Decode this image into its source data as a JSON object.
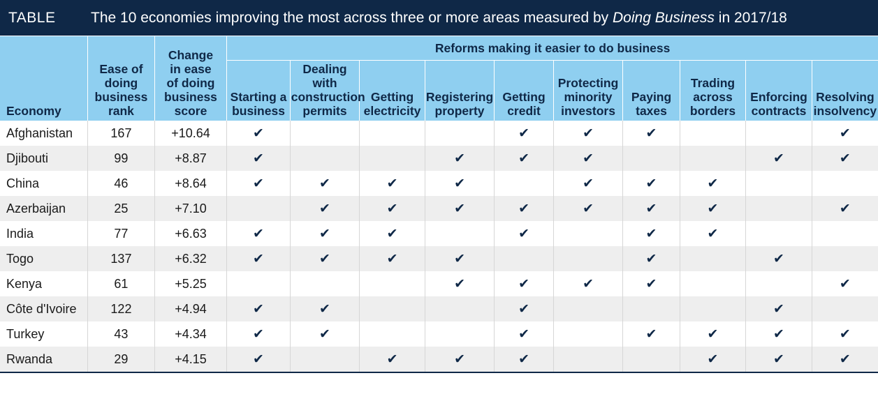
{
  "title": {
    "tag": "TABLE",
    "text_before": "The 10 economies improving the most across three or more areas measured by ",
    "text_italic": "Doing Business",
    "text_after": " in 2017/18"
  },
  "headers": {
    "economy": "Economy",
    "rank": [
      "Ease of",
      "doing",
      "business",
      "rank"
    ],
    "change": [
      "Change",
      "in ease",
      "of doing",
      "business",
      "score"
    ],
    "group": "Reforms making it easier to do business",
    "reforms": [
      [
        "Starting a",
        "business"
      ],
      [
        "Dealing",
        "with",
        "construction",
        "permits"
      ],
      [
        "Getting",
        "electricity"
      ],
      [
        "Registering",
        "property"
      ],
      [
        "Getting",
        "credit"
      ],
      [
        "Protecting",
        "minority",
        "investors"
      ],
      [
        "Paying",
        "taxes"
      ],
      [
        "Trading",
        "across",
        "borders"
      ],
      [
        "Enforcing",
        "contracts"
      ],
      [
        "Resolving",
        "insolvency"
      ]
    ]
  },
  "check_symbol": "✔",
  "rows": [
    {
      "economy": "Afghanistan",
      "rank": "167",
      "change": "+10.64",
      "reforms": [
        1,
        0,
        0,
        0,
        1,
        1,
        1,
        0,
        0,
        1
      ]
    },
    {
      "economy": "Djibouti",
      "rank": "99",
      "change": "+8.87",
      "reforms": [
        1,
        0,
        0,
        1,
        1,
        1,
        0,
        0,
        1,
        1
      ]
    },
    {
      "economy": "China",
      "rank": "46",
      "change": "+8.64",
      "reforms": [
        1,
        1,
        1,
        1,
        0,
        1,
        1,
        1,
        0,
        0
      ]
    },
    {
      "economy": "Azerbaijan",
      "rank": "25",
      "change": "+7.10",
      "reforms": [
        0,
        1,
        1,
        1,
        1,
        1,
        1,
        1,
        0,
        1
      ]
    },
    {
      "economy": "India",
      "rank": "77",
      "change": "+6.63",
      "reforms": [
        1,
        1,
        1,
        0,
        1,
        0,
        1,
        1,
        0,
        0
      ]
    },
    {
      "economy": "Togo",
      "rank": "137",
      "change": "+6.32",
      "reforms": [
        1,
        1,
        1,
        1,
        0,
        0,
        1,
        0,
        1,
        0
      ]
    },
    {
      "economy": "Kenya",
      "rank": "61",
      "change": "+5.25",
      "reforms": [
        0,
        0,
        0,
        1,
        1,
        1,
        1,
        0,
        0,
        1
      ]
    },
    {
      "economy": "Côte d'Ivoire",
      "rank": "122",
      "change": "+4.94",
      "reforms": [
        1,
        1,
        0,
        0,
        1,
        0,
        0,
        0,
        1,
        0
      ]
    },
    {
      "economy": "Turkey",
      "rank": "43",
      "change": "+4.34",
      "reforms": [
        1,
        1,
        0,
        0,
        1,
        0,
        1,
        1,
        1,
        1
      ]
    },
    {
      "economy": "Rwanda",
      "rank": "29",
      "change": "+4.15",
      "reforms": [
        1,
        0,
        1,
        1,
        1,
        0,
        0,
        1,
        1,
        1
      ]
    }
  ],
  "colors": {
    "navy": "#0f2847",
    "header_blue": "#8fcff0",
    "row_stripe": "#eeeeee"
  }
}
